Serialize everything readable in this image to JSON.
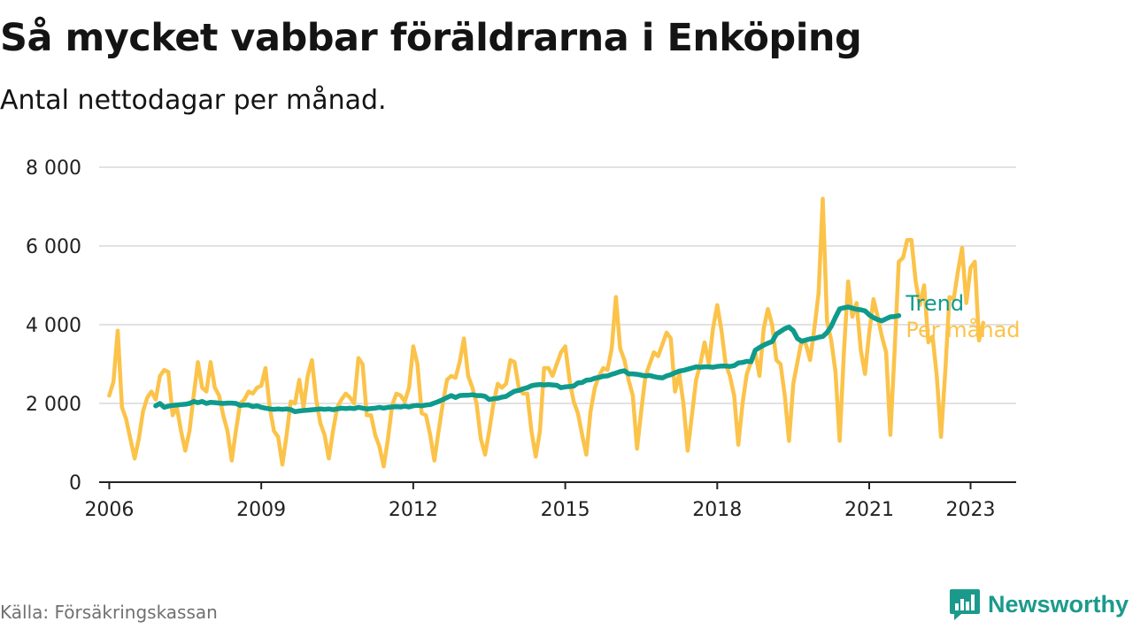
{
  "header": {
    "title": "Så mycket vabbar föräldrarna i Enköping",
    "subtitle": "Antal nettodagar per månad."
  },
  "footer": {
    "source": "Källa: Försäkringskassan",
    "brand": "Newsworthy"
  },
  "colors": {
    "monthly": "#fbc34a",
    "trend": "#0e9a8c",
    "grid": "#d9d9d9",
    "axis": "#222222"
  },
  "chart_data": {
    "type": "line",
    "title": "Så mycket vabbar föräldrarna i Enköping",
    "xlabel": "",
    "ylabel": "Antal nettodagar per månad",
    "x_start": "2006-01",
    "xlim": [
      2005.8,
      2023.9
    ],
    "ylim": [
      0,
      8000
    ],
    "yticks": [
      0,
      2000,
      4000,
      6000,
      8000
    ],
    "ytick_labels": [
      "0",
      "2 000",
      "4 000",
      "6 000",
      "8 000"
    ],
    "xticks": [
      2006,
      2009,
      2012,
      2015,
      2018,
      2021,
      2023
    ],
    "xtick_labels": [
      "2006",
      "2009",
      "2012",
      "2015",
      "2018",
      "2021",
      "2023"
    ],
    "grid": true,
    "series": [
      {
        "name": "Per månad",
        "label": "Per månad",
        "color": "#fbc34a",
        "start": 2006.0,
        "values": [
          2200,
          2550,
          3850,
          1900,
          1600,
          1100,
          600,
          1100,
          1800,
          2150,
          2300,
          2100,
          2700,
          2850,
          2800,
          1700,
          1900,
          1300,
          800,
          1300,
          2200,
          3050,
          2400,
          2300,
          3050,
          2400,
          2200,
          1700,
          1300,
          550,
          1300,
          2000,
          2100,
          2300,
          2250,
          2400,
          2450,
          2900,
          1900,
          1300,
          1150,
          450,
          1200,
          2050,
          2000,
          2600,
          1900,
          2700,
          3100,
          2100,
          1500,
          1200,
          600,
          1300,
          1900,
          2100,
          2250,
          2150,
          2000,
          3150,
          3000,
          1700,
          1700,
          1200,
          900,
          400,
          1100,
          1950,
          2250,
          2200,
          2050,
          2400,
          3450,
          3000,
          1750,
          1700,
          1200,
          550,
          1300,
          2000,
          2600,
          2700,
          2650,
          3050,
          3650,
          2700,
          2400,
          2000,
          1100,
          700,
          1300,
          2000,
          2500,
          2400,
          2500,
          3100,
          3050,
          2400,
          2250,
          2250,
          1300,
          650,
          1300,
          2900,
          2900,
          2700,
          3000,
          3300,
          3450,
          2600,
          2050,
          1750,
          1200,
          700,
          1800,
          2400,
          2700,
          2900,
          2850,
          3400,
          4700,
          3400,
          3100,
          2600,
          2200,
          850,
          1800,
          2700,
          3000,
          3300,
          3200,
          3500,
          3800,
          3650,
          2300,
          2750,
          2000,
          800,
          1700,
          2600,
          3000,
          3550,
          3000,
          3900,
          4500,
          3850,
          3000,
          2700,
          2200,
          950,
          2000,
          2750,
          3050,
          3300,
          2700,
          3900,
          4400,
          4000,
          3100,
          3000,
          2200,
          1050,
          2500,
          3050,
          3600,
          3500,
          3100,
          3900,
          4800,
          7200,
          4100,
          3600,
          2800,
          1050,
          3300,
          5100,
          4200,
          4550,
          3350,
          2750,
          3800,
          4650,
          4200,
          3700,
          3300,
          1200,
          3300,
          5600,
          5700,
          6150,
          6150,
          5100,
          4500,
          5000,
          3550,
          3700,
          2700,
          1150,
          2800,
          4700,
          4650,
          5350,
          5950,
          4550,
          5450,
          5600,
          3600,
          4050
        ]
      },
      {
        "name": "Trend",
        "label": "Trend",
        "color": "#0e9a8c",
        "start": 2006.917,
        "values": [
          1940,
          2000,
          1900,
          1930,
          1950,
          1960,
          1970,
          1980,
          2000,
          2050,
          2020,
          2050,
          2000,
          2030,
          2020,
          2010,
          2000,
          2010,
          2010,
          2000,
          1950,
          1960,
          1960,
          1920,
          1940,
          1900,
          1880,
          1860,
          1850,
          1860,
          1850,
          1860,
          1840,
          1790,
          1810,
          1820,
          1830,
          1840,
          1850,
          1860,
          1850,
          1860,
          1840,
          1860,
          1880,
          1870,
          1880,
          1870,
          1900,
          1880,
          1860,
          1870,
          1880,
          1900,
          1880,
          1900,
          1910,
          1920,
          1910,
          1930,
          1910,
          1940,
          1950,
          1940,
          1960,
          1970,
          2010,
          2050,
          2100,
          2150,
          2200,
          2150,
          2200,
          2210,
          2210,
          2220,
          2200,
          2200,
          2180,
          2100,
          2120,
          2130,
          2160,
          2180,
          2250,
          2310,
          2330,
          2370,
          2400,
          2450,
          2470,
          2480,
          2470,
          2480,
          2470,
          2460,
          2400,
          2420,
          2430,
          2440,
          2520,
          2530,
          2590,
          2600,
          2640,
          2660,
          2690,
          2700,
          2740,
          2770,
          2810,
          2830,
          2750,
          2750,
          2740,
          2720,
          2700,
          2710,
          2680,
          2660,
          2650,
          2700,
          2730,
          2780,
          2820,
          2840,
          2870,
          2900,
          2930,
          2920,
          2930,
          2930,
          2920,
          2940,
          2950,
          2950,
          2940,
          2960,
          3030,
          3040,
          3070,
          3060,
          3350,
          3420,
          3480,
          3530,
          3570,
          3760,
          3830,
          3900,
          3940,
          3850,
          3650,
          3580,
          3610,
          3640,
          3650,
          3680,
          3700,
          3800,
          3960,
          4190,
          4400,
          4430,
          4450,
          4420,
          4390,
          4380,
          4350,
          4250,
          4180,
          4130,
          4100,
          4150,
          4200,
          4210,
          4230
        ]
      }
    ]
  }
}
